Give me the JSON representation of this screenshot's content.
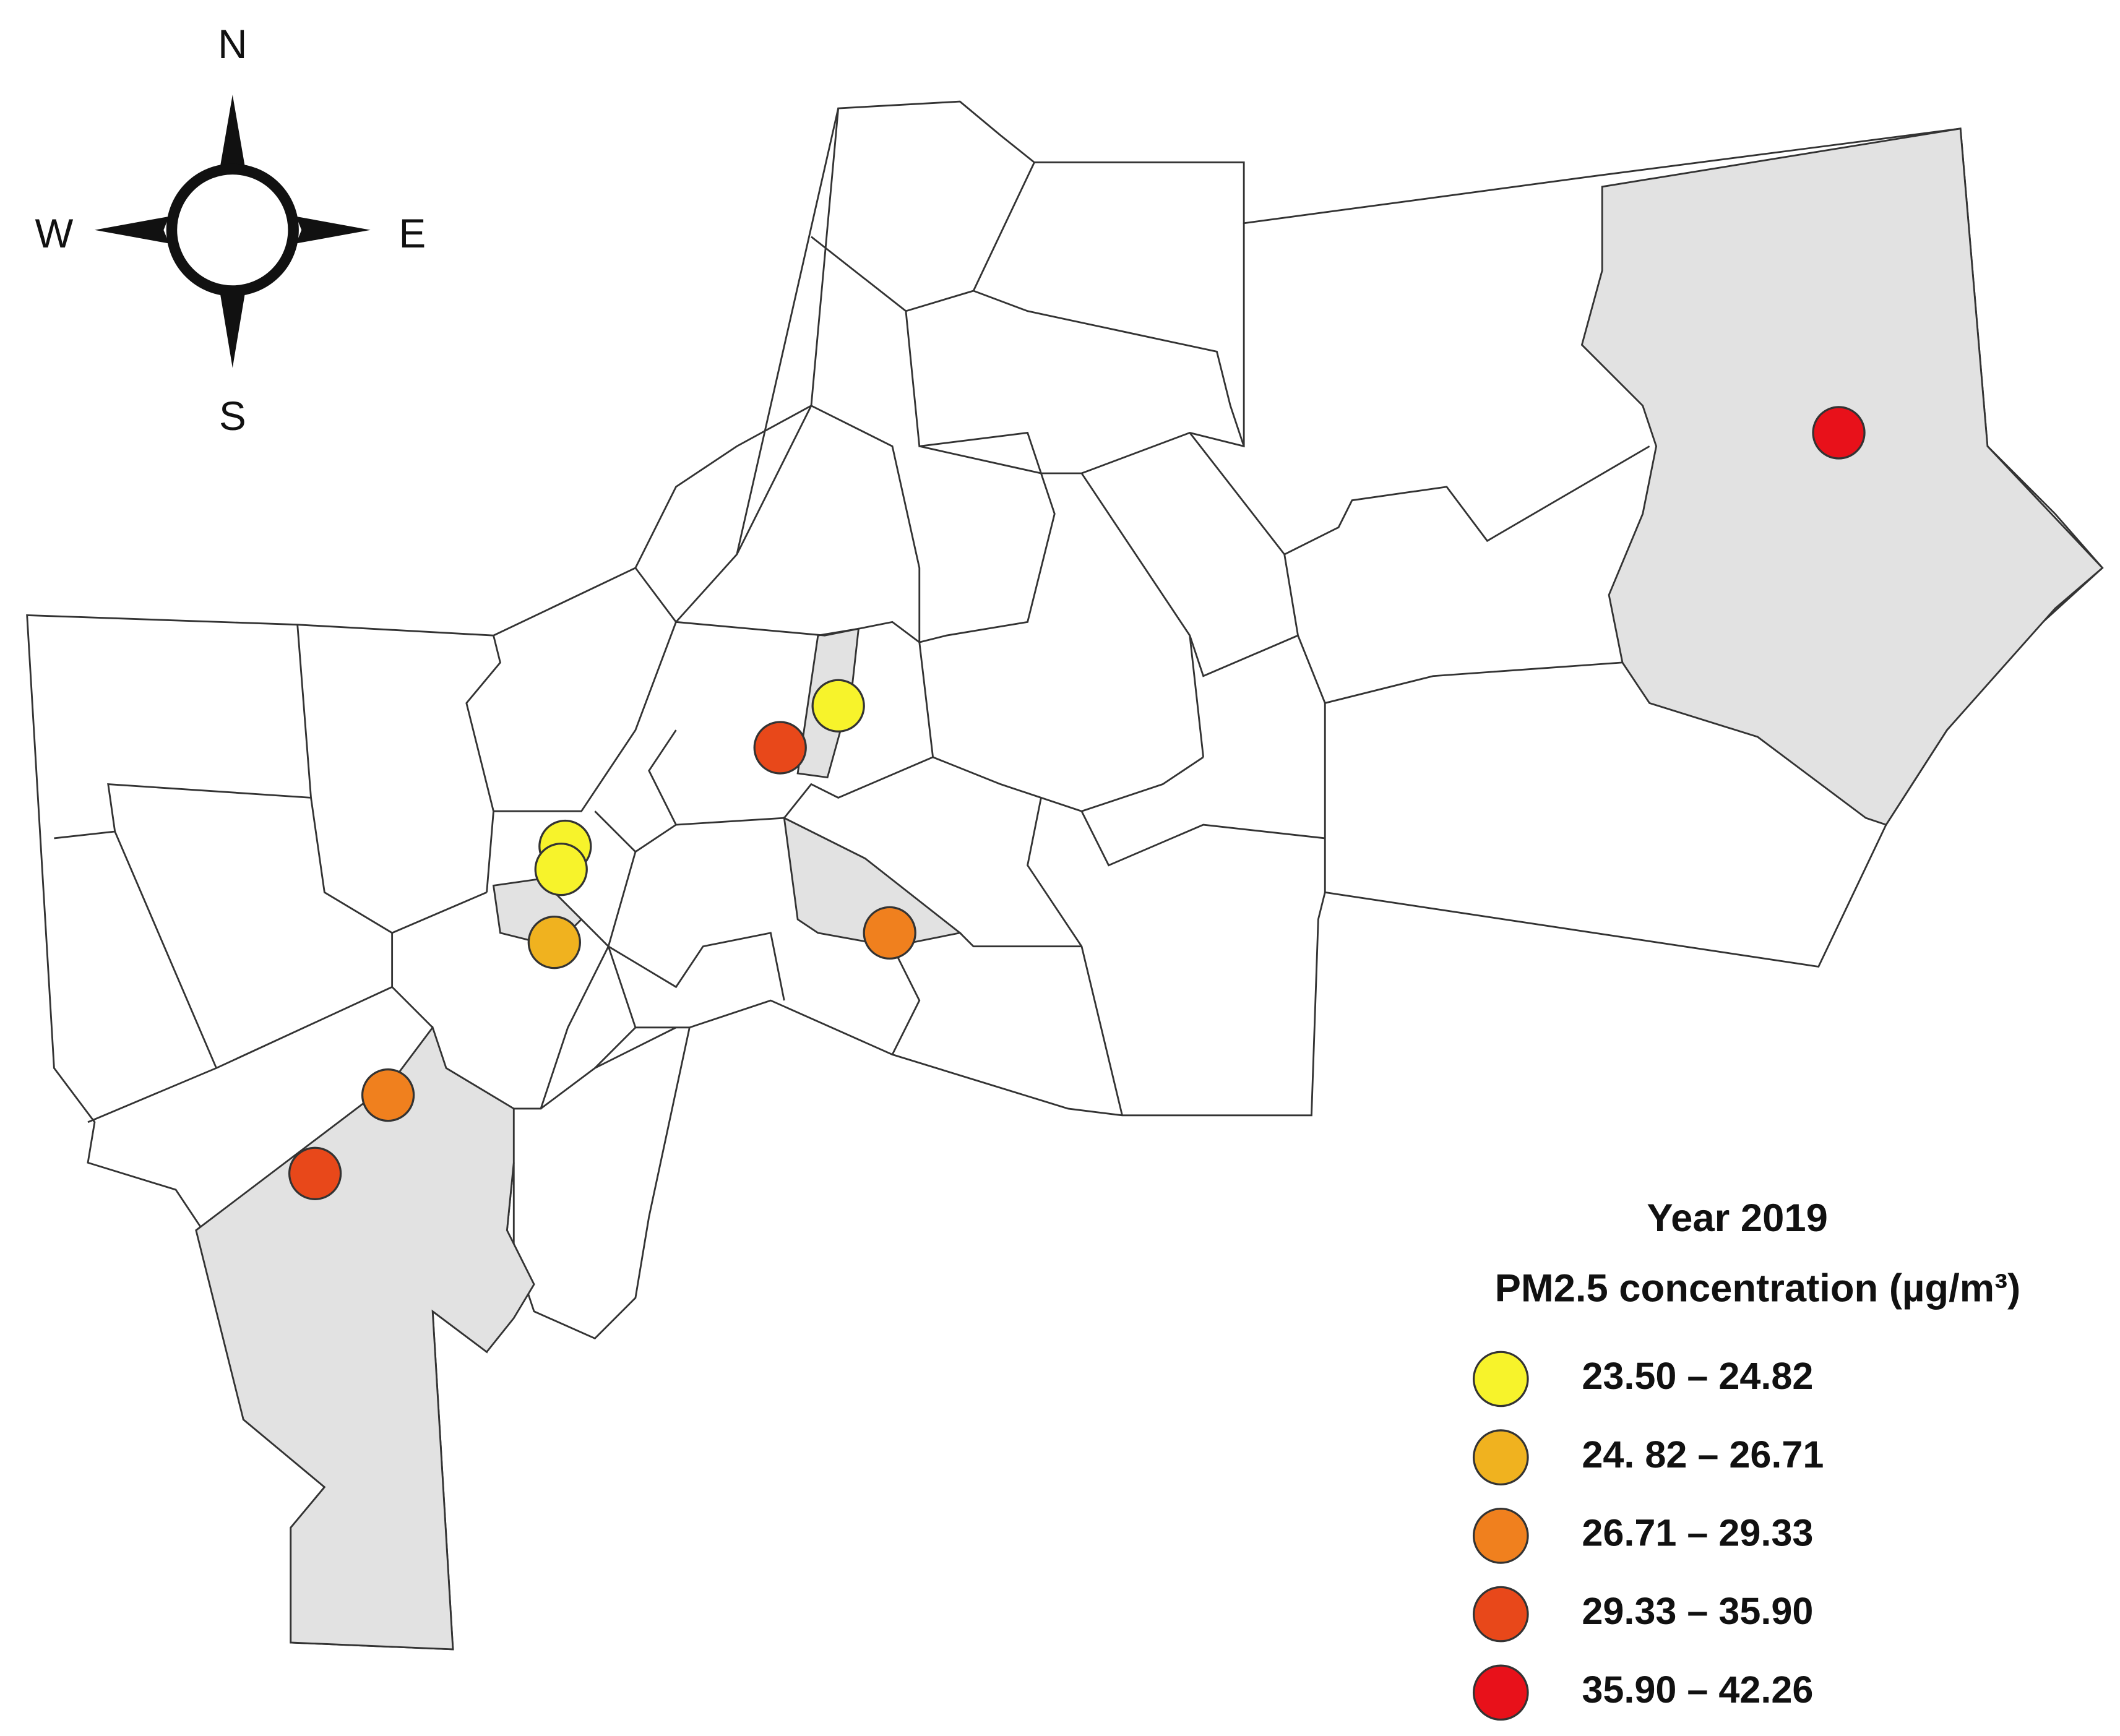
{
  "compass": {
    "north": "N",
    "south": "S",
    "west": "W",
    "east": "E"
  },
  "legend": {
    "title": "Year 2019",
    "subtitle": "PM2.5 concentration (µg/m³)",
    "items": [
      {
        "label": "23.50 – 24.82",
        "color": "#f7f32b"
      },
      {
        "label": "24. 82 – 26.71",
        "color": "#f0b21f"
      },
      {
        "label": "26.71 – 29.33",
        "color": "#f0801e"
      },
      {
        "label": "29.33 – 35.90",
        "color": "#e8481a"
      },
      {
        "label": "35.90 – 42.26",
        "color": "#e8111a"
      }
    ]
  }
}
